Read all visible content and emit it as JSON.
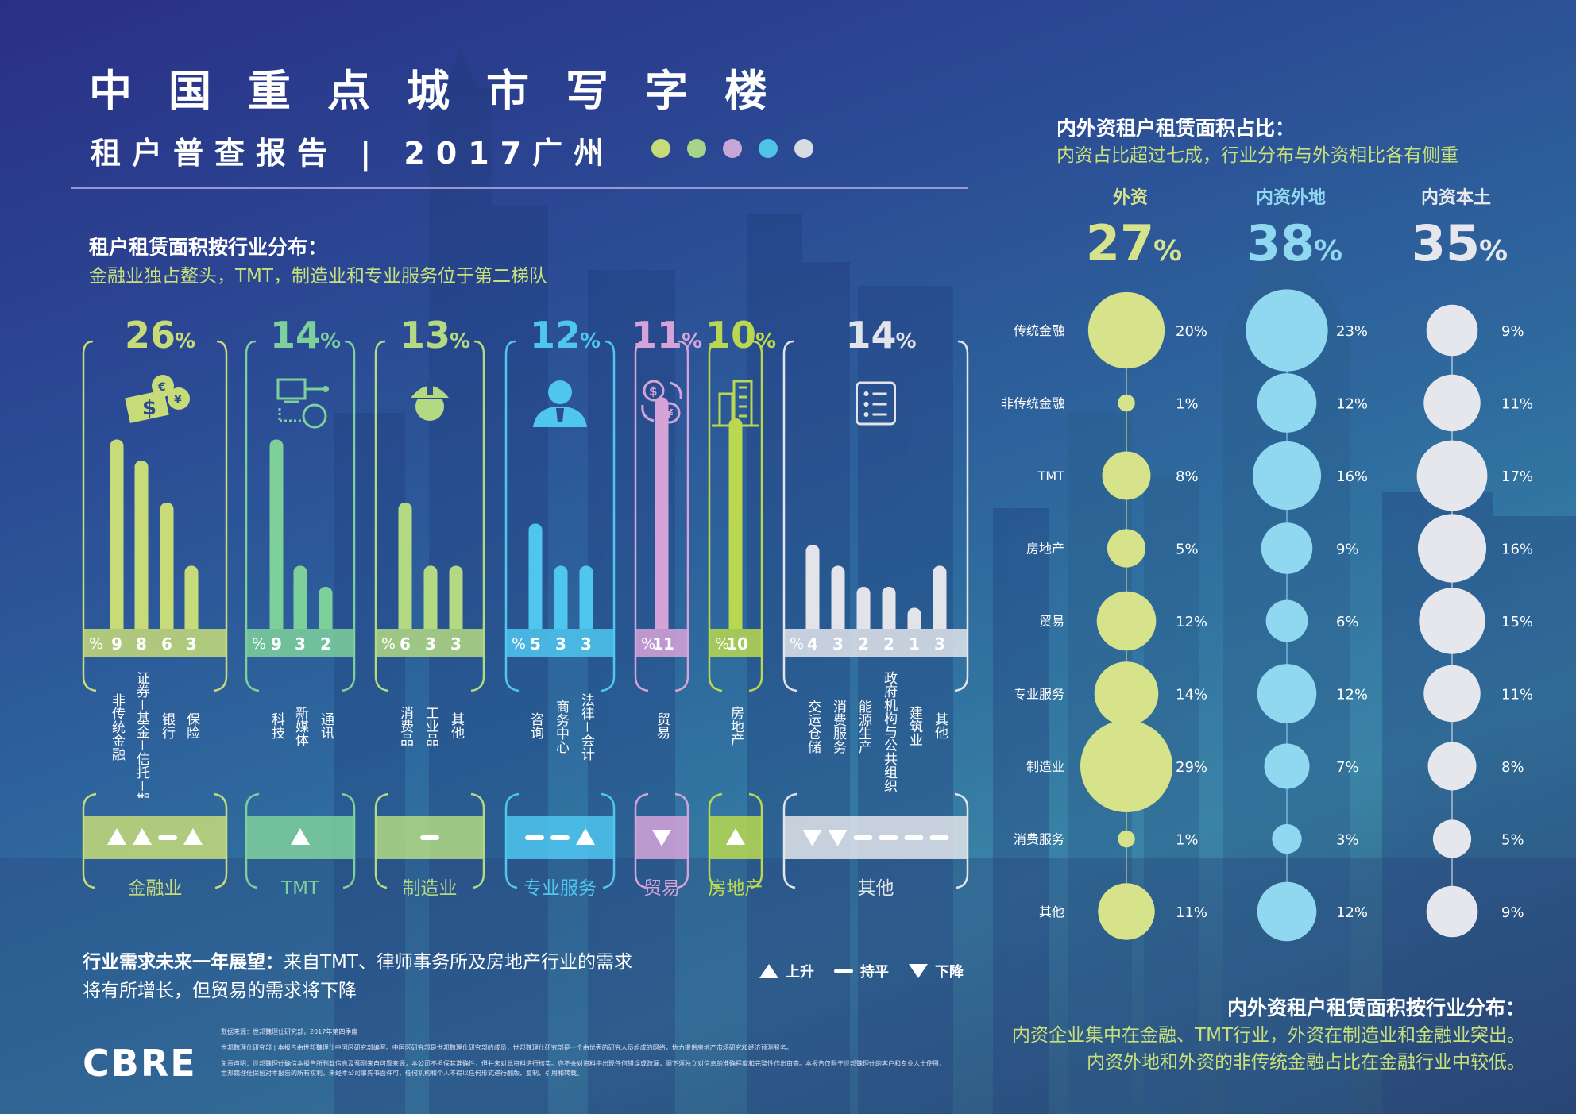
{
  "header": {
    "title": "中国重点城市写字楼",
    "subtitle": "租户普查报告 | 2017广州",
    "dot_colors": [
      "#c7dc78",
      "#a8d48a",
      "#c9a6d8",
      "#4fc3e8",
      "#d9dbe2"
    ]
  },
  "left_section": {
    "heading": "租户租赁面积按行业分布：",
    "subheading": "金融业独占鳌头，TMT，制造业和专业服务位于第二梯队"
  },
  "right_section": {
    "heading": "内外资租户租赁面积占比：",
    "subheading": "内资占比超过七成，行业分布与外资相比各有侧重"
  },
  "outlook": {
    "heading": "行业需求未来一年展望：",
    "text1": "来自TMT、律师事务所及房地产行业的需求",
    "text2": "将有所增长，但贸易的需求将下降",
    "legend": {
      "up": "上升",
      "flat": "持平",
      "down": "下降"
    }
  },
  "bottom_right": {
    "heading": "内外资租户租赁面积按行业分布：",
    "line1": "内资企业集中在金融、TMT行业，外资在制造业和金融业突出。",
    "line2": "内资外地和外资的非传统金融占比在金融行业中较低。"
  },
  "footer": {
    "brand": "CBRE",
    "source": "数据来源：世邦魏理仕研究部，2017年第四季度",
    "note1": "世邦魏理仕研究部 | 本报告由世邦魏理仕中国区研究部编写。中国区研究部是世邦魏理仕研究部的成员，世邦魏理仕研究部是一个由优秀的研究人员组成的网络，协力提供房地产市场研究和经济预测服务。",
    "note2": "免责声明：世邦魏理仕确信本报告所刊载信息及预测来自可靠来源，本公司不担保其准确性，但并未对此资料进行核实。亦不会对资料中出现任何错误或疏漏，阁下须独立对信息的准确程度和完整性作出审查。本报告仅限于世邦魏理仕的客户和专业人士使用，",
    "note3": "世邦魏理仕保留对本报告的所有权利，未经本公司事先书面许可，任何机构和个人不得以任何形式进行翻版、复制、引用和转载。"
  },
  "chart_data": [
    {
      "type": "bar",
      "title": "租户租赁面积按行业分布",
      "unit": "%",
      "groups": [
        {
          "name": "金融业",
          "share": 26,
          "color": "#c7dc78",
          "icon": "money-icon",
          "categories": [
            "非传统金融",
            "证券－基金－信托－期货",
            "银行",
            "保险"
          ],
          "values": [
            9,
            8,
            6,
            3
          ],
          "outlook": [
            "up",
            "up",
            "flat",
            "up"
          ]
        },
        {
          "name": "TMT",
          "share": 14,
          "color": "#7ed09b",
          "icon": "computer-network-icon",
          "categories": [
            "科技",
            "新媒体",
            "通讯"
          ],
          "values": [
            9,
            3,
            2
          ],
          "outlook": [
            "up"
          ]
        },
        {
          "name": "制造业",
          "share": 13,
          "color": "#b3d982",
          "icon": "worker-helmet-icon",
          "categories": [
            "消费品",
            "工业品",
            "其他"
          ],
          "values": [
            6,
            3,
            3
          ],
          "outlook": [
            "flat"
          ]
        },
        {
          "name": "专业服务",
          "share": 12,
          "color": "#4fc6ee",
          "icon": "consultant-icon",
          "categories": [
            "咨询",
            "商务中心",
            "法律－会计"
          ],
          "values": [
            5,
            3,
            3
          ],
          "outlook": [
            "flat",
            "flat",
            "up"
          ]
        },
        {
          "name": "贸易",
          "share": 11,
          "color": "#d6a3d9",
          "icon": "currency-exchange-icon",
          "categories": [
            "贸易"
          ],
          "values": [
            11
          ],
          "outlook": [
            "down"
          ]
        },
        {
          "name": "房地产",
          "share": 10,
          "color": "#b9d84f",
          "icon": "building-icon",
          "categories": [
            "房地产"
          ],
          "values": [
            10
          ],
          "outlook": [
            "up"
          ]
        },
        {
          "name": "其他",
          "share": 14,
          "color": "#e2e4ea",
          "icon": "checklist-icon",
          "categories": [
            "交运仓储",
            "消费服务",
            "能源生产",
            "政府机构与公共组织",
            "建筑业",
            "其他"
          ],
          "values": [
            4,
            3,
            2,
            2,
            1,
            3
          ],
          "outlook": [
            "down",
            "down",
            "flat",
            "flat",
            "flat",
            "flat"
          ]
        }
      ]
    },
    {
      "type": "bubble",
      "title": "内外资租户租赁面积占比",
      "unit": "%",
      "categories": [
        "传统金融",
        "非传统金融",
        "TMT",
        "房地产",
        "贸易",
        "专业服务",
        "制造业",
        "消费服务",
        "其他"
      ],
      "series": [
        {
          "name": "外资",
          "total": 27,
          "color": "#d6e38a",
          "values": [
            20,
            1,
            8,
            5,
            12,
            14,
            29,
            1,
            11
          ]
        },
        {
          "name": "内资外地",
          "total": 38,
          "color": "#8fd8ef",
          "values": [
            23,
            12,
            16,
            9,
            6,
            12,
            7,
            3,
            12
          ]
        },
        {
          "name": "内资本土",
          "total": 35,
          "color": "#e6e7ec",
          "values": [
            9,
            11,
            17,
            16,
            15,
            11,
            8,
            5,
            9
          ]
        }
      ]
    }
  ]
}
